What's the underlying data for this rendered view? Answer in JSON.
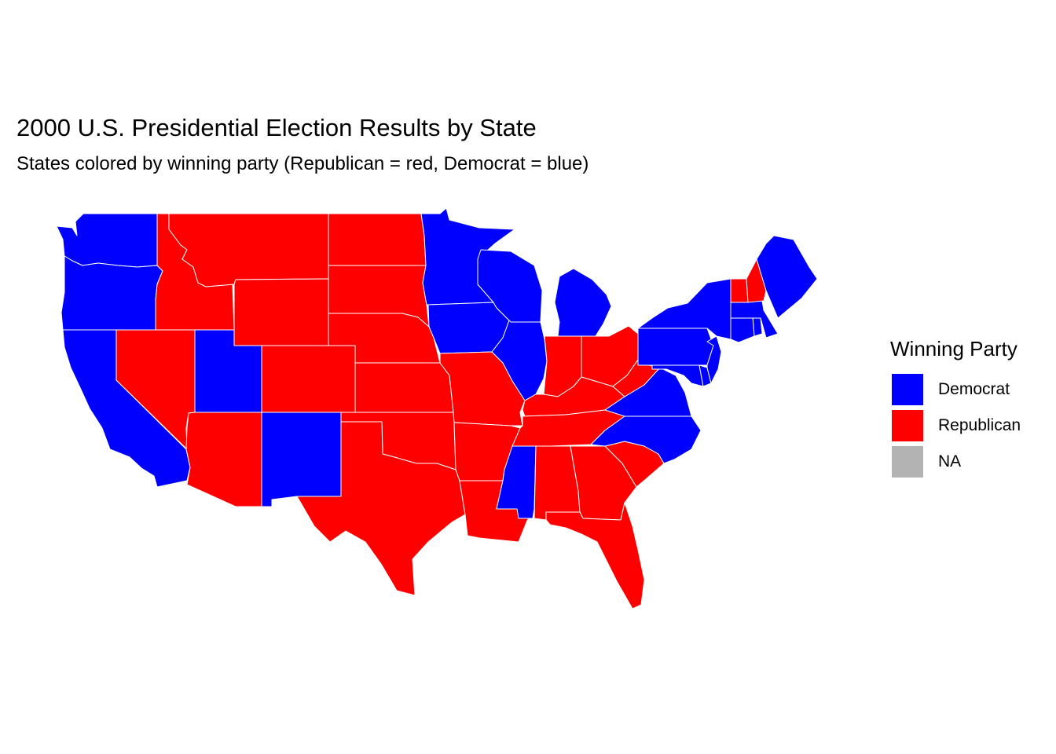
{
  "title": "2000 U.S. Presidential Election Results by State",
  "subtitle": "States colored by winning party (Republican = red, Democrat = blue)",
  "legend": {
    "title": "Winning Party",
    "items": [
      {
        "label": "Democrat",
        "color": "#0000ff"
      },
      {
        "label": "Republican",
        "color": "#ff0000"
      },
      {
        "label": "NA",
        "color": "#b3b3b3"
      }
    ]
  },
  "colors": {
    "Democrat": "#0000ff",
    "Republican": "#ff0000",
    "NA": "#b3b3b3",
    "border": "#ffffff"
  },
  "states": [
    {
      "id": "WA",
      "party": "Democrat"
    },
    {
      "id": "OR",
      "party": "Democrat"
    },
    {
      "id": "CA",
      "party": "Democrat"
    },
    {
      "id": "NV",
      "party": "Republican"
    },
    {
      "id": "ID",
      "party": "Republican"
    },
    {
      "id": "MT",
      "party": "Republican"
    },
    {
      "id": "WY",
      "party": "Republican"
    },
    {
      "id": "UT",
      "party": "Democrat"
    },
    {
      "id": "AZ",
      "party": "Republican"
    },
    {
      "id": "CO",
      "party": "Republican"
    },
    {
      "id": "NM",
      "party": "Democrat"
    },
    {
      "id": "ND",
      "party": "Republican"
    },
    {
      "id": "SD",
      "party": "Republican"
    },
    {
      "id": "NE",
      "party": "Republican"
    },
    {
      "id": "KS",
      "party": "Republican"
    },
    {
      "id": "OK",
      "party": "Republican"
    },
    {
      "id": "TX",
      "party": "Republican"
    },
    {
      "id": "MN",
      "party": "Democrat"
    },
    {
      "id": "IA",
      "party": "Democrat"
    },
    {
      "id": "MO",
      "party": "Republican"
    },
    {
      "id": "AR",
      "party": "Republican"
    },
    {
      "id": "LA",
      "party": "Republican"
    },
    {
      "id": "WI",
      "party": "Democrat"
    },
    {
      "id": "IL",
      "party": "Democrat"
    },
    {
      "id": "MI",
      "party": "Democrat"
    },
    {
      "id": "IN",
      "party": "Republican"
    },
    {
      "id": "OH",
      "party": "Republican"
    },
    {
      "id": "KY",
      "party": "Republican"
    },
    {
      "id": "TN",
      "party": "Republican"
    },
    {
      "id": "MS",
      "party": "Democrat"
    },
    {
      "id": "AL",
      "party": "Republican"
    },
    {
      "id": "GA",
      "party": "Republican"
    },
    {
      "id": "FL",
      "party": "Republican"
    },
    {
      "id": "SC",
      "party": "Republican"
    },
    {
      "id": "NC",
      "party": "Democrat"
    },
    {
      "id": "VA",
      "party": "Democrat"
    },
    {
      "id": "WV",
      "party": "Republican"
    },
    {
      "id": "MD",
      "party": "Democrat"
    },
    {
      "id": "DE",
      "party": "Democrat"
    },
    {
      "id": "PA",
      "party": "Democrat"
    },
    {
      "id": "NJ",
      "party": "Democrat"
    },
    {
      "id": "NY",
      "party": "Democrat"
    },
    {
      "id": "CT",
      "party": "Democrat"
    },
    {
      "id": "RI",
      "party": "Democrat"
    },
    {
      "id": "MA",
      "party": "Democrat"
    },
    {
      "id": "VT",
      "party": "Republican"
    },
    {
      "id": "NH",
      "party": "Republican"
    },
    {
      "id": "ME",
      "party": "Democrat"
    }
  ]
}
